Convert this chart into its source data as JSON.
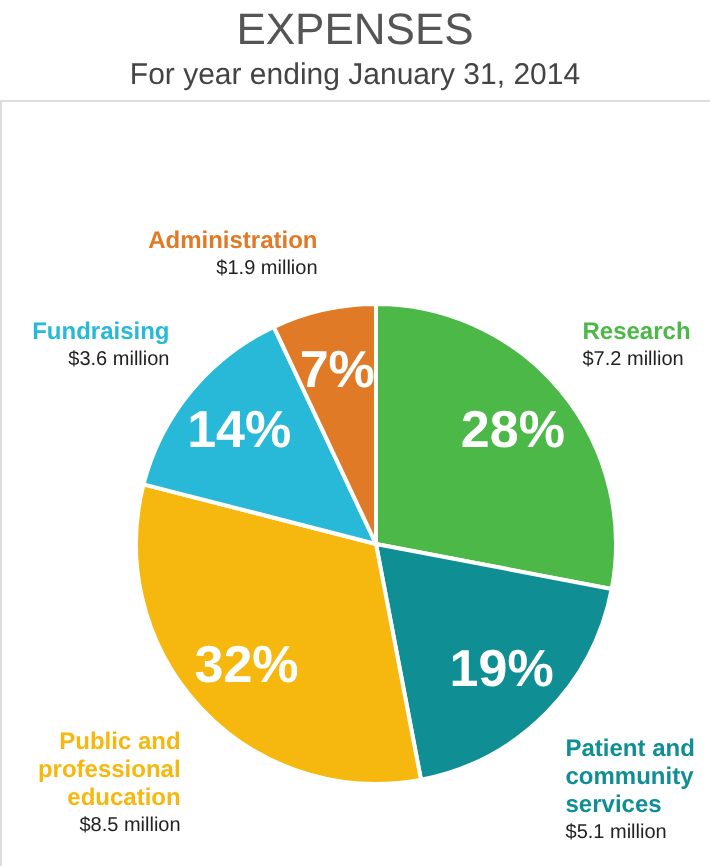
{
  "chart_data": {
    "type": "pie",
    "title": "EXPENSES",
    "subtitle": "For year ending January 31, 2014",
    "categories": [
      "Research",
      "Patient and community services",
      "Public and professional education",
      "Fundraising",
      "Administration"
    ],
    "values": [
      28,
      19,
      32,
      14,
      7
    ],
    "value_labels": [
      "28%",
      "19%",
      "32%",
      "14%",
      "7%"
    ],
    "colors": [
      "#4cb848",
      "#0f8f94",
      "#f6b70f",
      "#28b8d8",
      "#e07a26"
    ],
    "annotations": [
      "$7.2 million",
      "$5.1 million",
      "$8.5 million",
      "$3.6 million",
      "$1.9 million"
    ],
    "legend": false
  }
}
